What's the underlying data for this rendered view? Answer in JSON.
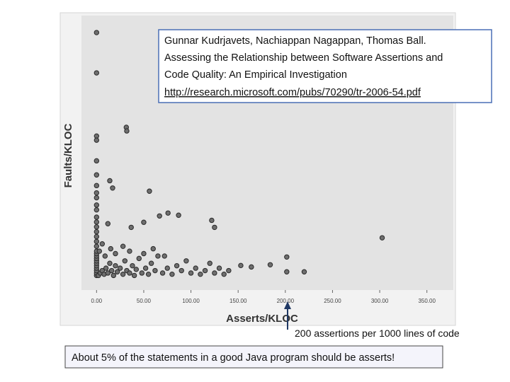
{
  "chart_data": {
    "type": "scatter",
    "citation": [
      "Gunnar Kudrjavets, Nachiappan Nagappan, Thomas Ball.",
      "Assessing the Relationship between Software Assertions and",
      "Code Quality: An Empirical Investigation",
      "http://research.microsoft.com/pubs/70290/tr-2006-54.pdf"
    ],
    "xlabel": "Asserts/KLOC",
    "ylabel": "Faults/KLOC",
    "annotation": "200 assertions per 1000 lines of code",
    "note": "About 5% of the statements in a good Java program should be asserts!",
    "color": "#6e6e6e",
    "xlim": [
      -16,
      378
    ],
    "ylim": [
      -6,
      107
    ],
    "xticks": [
      {
        "value": 0,
        "label": "0.00"
      },
      {
        "value": 50,
        "label": "50.00"
      },
      {
        "value": 100,
        "label": "100.00"
      },
      {
        "value": 150,
        "label": "150.00"
      },
      {
        "value": 200,
        "label": "200.00"
      },
      {
        "value": 250,
        "label": "250.00"
      },
      {
        "value": 300,
        "label": "300.00"
      },
      {
        "value": 350,
        "label": "350.00"
      }
    ],
    "x": [
      0,
      0,
      31.5,
      32,
      0,
      0,
      0,
      0,
      14,
      17,
      56,
      0,
      0,
      0,
      0,
      0,
      75.7,
      86.9,
      66.7,
      122,
      125,
      50,
      12,
      36.7,
      302.6,
      201.5,
      152.8,
      164,
      184,
      220,
      201.5,
      0,
      0,
      0,
      0,
      0,
      0,
      0,
      0,
      0,
      0,
      0,
      0,
      0,
      0,
      0,
      0,
      0,
      0,
      2,
      4,
      6,
      8,
      10,
      12,
      14,
      16,
      18,
      20,
      22,
      25,
      28,
      30,
      32,
      35,
      38,
      40,
      42,
      45,
      48,
      52,
      55,
      58,
      62,
      65,
      70,
      75,
      80,
      85,
      90,
      95,
      100,
      105,
      110,
      115,
      120,
      125,
      130,
      135,
      140,
      3,
      6,
      9,
      15,
      20,
      28,
      35,
      50,
      60,
      72
    ],
    "values": [
      100,
      83.4,
      61,
      59.5,
      57.4,
      55.7,
      47.2,
      41.4,
      39,
      36,
      34.7,
      37,
      34,
      32,
      29,
      27,
      25.7,
      24.8,
      24.5,
      22.7,
      19.8,
      21.9,
      21.3,
      19.8,
      15.5,
      7.6,
      4.1,
      3.5,
      4.4,
      1.5,
      1.5,
      0,
      1,
      2,
      3,
      4,
      5,
      6,
      7,
      8,
      9,
      10,
      12,
      14,
      16,
      18,
      20,
      22,
      24,
      0,
      1,
      2,
      0.5,
      3,
      1,
      5,
      2,
      0,
      4,
      1.5,
      3,
      0.5,
      6,
      2,
      1,
      4,
      0,
      2.5,
      7,
      1,
      3,
      0.5,
      5,
      2,
      8,
      1,
      3,
      0.5,
      4,
      2,
      6,
      1,
      3,
      0.5,
      2,
      5,
      1,
      3,
      0.5,
      2,
      10,
      13,
      8,
      11,
      9,
      12,
      10,
      9,
      11,
      8
    ]
  }
}
